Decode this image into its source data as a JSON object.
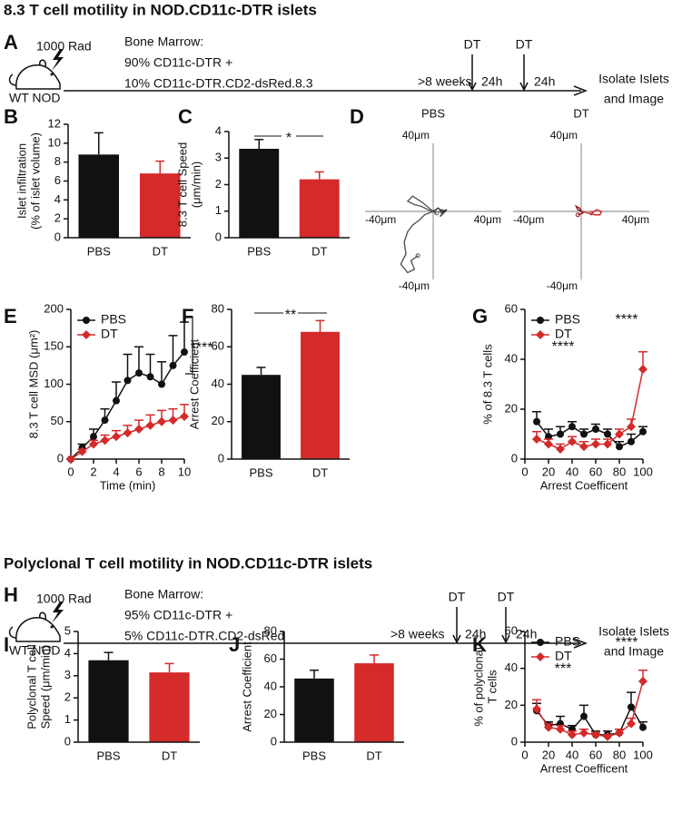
{
  "headings": [
    "8.3 T cell motility in NOD.CD11c-DTR islets",
    "Polyclonal T cell motility in NOD.CD11c-DTR islets"
  ],
  "timelines": [
    {
      "panel": "A",
      "dose": "1000 Rad",
      "mouse": "WT NOD",
      "marrow": [
        "Bone Marrow:",
        "90% CD11c-DTR +",
        "10% CD11c-DTR.CD2-dsRed.8.3"
      ],
      "weeks": ">8 weeks",
      "dt": [
        "DT",
        "DT"
      ],
      "interval": [
        "24h",
        "24h"
      ],
      "end": [
        "Isolate Islets",
        "and Image"
      ]
    },
    {
      "panel": "H",
      "dose": "1000 Rad",
      "mouse": "WT NOD",
      "marrow": [
        "Bone Marrow:",
        "95% CD11c-DTR +",
        "5% CD11c-DTR.CD2-dsRed"
      ],
      "weeks": ">8 weeks",
      "dt": [
        "DT",
        "DT"
      ],
      "interval": [
        "24h",
        "24h"
      ],
      "end": [
        "Isolate Islets",
        "and Image"
      ]
    }
  ],
  "chart_data": [
    {
      "type": "bar",
      "panel": "B",
      "ylabel": [
        "Islet infiltration",
        "(% of islet volume)"
      ],
      "categories": [
        "PBS",
        "DT"
      ],
      "values": [
        8.8,
        6.8
      ],
      "errors": [
        2.3,
        1.3
      ],
      "colors": [
        "#111111",
        "#d42a2a"
      ],
      "ylim": [
        0,
        12
      ],
      "yticks": [
        0,
        2,
        4,
        6,
        8,
        10,
        12
      ],
      "annotations": []
    },
    {
      "type": "bar",
      "panel": "C",
      "ylabel": [
        "8.3 T cell Speed",
        "(μm/min)"
      ],
      "categories": [
        "PBS",
        "DT"
      ],
      "values": [
        3.35,
        2.2
      ],
      "errors": [
        0.35,
        0.28
      ],
      "colors": [
        "#111111",
        "#d42a2a"
      ],
      "ylim": [
        0,
        4
      ],
      "yticks": [
        0,
        1,
        2,
        3,
        4
      ],
      "annotations": [
        {
          "text": "*",
          "color": "#111111"
        }
      ]
    },
    {
      "type": "tracks",
      "panel": "D",
      "xlim": [
        -40,
        40
      ],
      "ylim": [
        -40,
        40
      ],
      "xticks": [
        {
          "value": -40,
          "label": "-40μm"
        },
        {
          "value": 40,
          "label": "40μm"
        }
      ],
      "yticks": [
        {
          "value": -40,
          "label": "-40μm"
        },
        {
          "value": 40,
          "label": "40μm"
        }
      ],
      "plots": [
        {
          "title": "PBS",
          "tracks": [
            {
              "color": "#555555",
              "x": [
                0,
                -5,
                -8,
                -12,
                -15,
                -17,
                -16,
                -19,
                -15,
                -11,
                -13,
                -9
              ],
              "y": [
                0,
                -2,
                -5,
                -8,
                -12,
                -18,
                -25,
                -31,
                -36,
                -34,
                -29,
                -26
              ]
            },
            {
              "color": "#555555",
              "x": [
                0,
                -6,
                -12,
                -15,
                -11,
                -7,
                -3,
                2
              ],
              "y": [
                0,
                5,
                9,
                6,
                4,
                3,
                1,
                -1
              ]
            },
            {
              "color": "#333333",
              "x": [
                0,
                3,
                6,
                4,
                8,
                5
              ],
              "y": [
                0,
                2,
                -1,
                -3,
                1,
                0
              ]
            }
          ]
        },
        {
          "title": "DT",
          "tracks": [
            {
              "color": "#d42a2a",
              "x": [
                0,
                4,
                8,
                11,
                12,
                9,
                6
              ],
              "y": [
                0,
                -1,
                -2,
                -2,
                0,
                1,
                -1
              ]
            },
            {
              "color": "#8b1a1a",
              "x": [
                0,
                -2,
                -3,
                -1,
                1,
                -2
              ],
              "y": [
                0,
                1,
                3,
                2,
                -1,
                -2
              ]
            }
          ]
        }
      ]
    },
    {
      "type": "line",
      "panel": "E",
      "ylabel": [
        "8.3 T cell MSD (μm²)"
      ],
      "xlabel": "Time (min)",
      "x": [
        0,
        1,
        2,
        3,
        4,
        5,
        6,
        7,
        8,
        9,
        10
      ],
      "xlim": [
        0,
        10
      ],
      "xticks": [
        0,
        2,
        4,
        6,
        8,
        10
      ],
      "ylim": [
        0,
        200
      ],
      "yticks": [
        0,
        50,
        100,
        150,
        200
      ],
      "series": [
        {
          "name": "PBS",
          "color": "#111111",
          "marker": "circle",
          "values": [
            0,
            15,
            30,
            52,
            78,
            105,
            115,
            110,
            100,
            125,
            143
          ],
          "errors": [
            0,
            5,
            10,
            15,
            25,
            35,
            35,
            30,
            30,
            40,
            40
          ]
        },
        {
          "name": "DT",
          "color": "#d42a2a",
          "marker": "diamond",
          "values": [
            0,
            10,
            20,
            25,
            30,
            35,
            40,
            45,
            50,
            52,
            57
          ],
          "errors": [
            0,
            3,
            5,
            7,
            8,
            10,
            12,
            14,
            15,
            15,
            16
          ]
        }
      ],
      "annotations": [
        {
          "text": "****",
          "color": "#111111"
        }
      ]
    },
    {
      "type": "bar",
      "panel": "F",
      "ylabel": [
        "Arrest Coefficient"
      ],
      "categories": [
        "PBS",
        "DT"
      ],
      "values": [
        45,
        68
      ],
      "errors": [
        4,
        6
      ],
      "colors": [
        "#111111",
        "#d42a2a"
      ],
      "ylim": [
        0,
        80
      ],
      "yticks": [
        0,
        20,
        40,
        60,
        80
      ],
      "annotations": [
        {
          "text": "**",
          "color": "#111111"
        }
      ]
    },
    {
      "type": "line",
      "panel": "G",
      "ylabel": [
        "% of 8.3 T cells"
      ],
      "xlabel": "Arrest Coefficent",
      "x": [
        10,
        20,
        30,
        40,
        50,
        60,
        70,
        80,
        90,
        100
      ],
      "xlim": [
        0,
        100
      ],
      "xticks": [
        0,
        20,
        40,
        60,
        80,
        100
      ],
      "ylim": [
        0,
        60
      ],
      "yticks": [
        0,
        20,
        40,
        60
      ],
      "series": [
        {
          "name": "PBS",
          "color": "#111111",
          "marker": "circle",
          "values": [
            15,
            9,
            10,
            13,
            10,
            12,
            10,
            5,
            7,
            11
          ],
          "errors": [
            4,
            3,
            3,
            2,
            2,
            2,
            2,
            2,
            3,
            2
          ]
        },
        {
          "name": "DT",
          "color": "#d42a2a",
          "marker": "diamond",
          "values": [
            8,
            6,
            4,
            7,
            5,
            6,
            6,
            10,
            13,
            36
          ],
          "errors": [
            3,
            2,
            2,
            2,
            2,
            2,
            2,
            2,
            3,
            7
          ]
        }
      ],
      "annotations": [
        {
          "text": "****",
          "color": "#d42a2a"
        },
        {
          "text": "****",
          "color": "#111111"
        }
      ]
    },
    {
      "type": "bar",
      "panel": "I",
      "ylabel": [
        "Polyclonal T cell",
        "Speed (μm/min)"
      ],
      "categories": [
        "PBS",
        "DT"
      ],
      "values": [
        3.7,
        3.15
      ],
      "errors": [
        0.35,
        0.4
      ],
      "colors": [
        "#111111",
        "#d42a2a"
      ],
      "ylim": [
        0,
        5
      ],
      "yticks": [
        0,
        1,
        2,
        3,
        4,
        5
      ],
      "annotations": []
    },
    {
      "type": "bar",
      "panel": "J",
      "ylabel": [
        "Arrest Coefficient"
      ],
      "categories": [
        "PBS",
        "DT"
      ],
      "values": [
        46,
        57
      ],
      "errors": [
        6,
        6
      ],
      "colors": [
        "#111111",
        "#d42a2a"
      ],
      "ylim": [
        0,
        80
      ],
      "yticks": [
        0,
        20,
        40,
        60,
        80
      ],
      "annotations": []
    },
    {
      "type": "line",
      "panel": "K",
      "ylabel": [
        "% of polyclonal",
        "T cells"
      ],
      "xlabel": "Arrest Coefficent",
      "x": [
        10,
        20,
        30,
        40,
        50,
        60,
        70,
        80,
        90,
        100
      ],
      "xlim": [
        0,
        100
      ],
      "xticks": [
        0,
        20,
        40,
        60,
        80,
        100
      ],
      "ylim": [
        0,
        60
      ],
      "yticks": [
        0,
        20,
        40,
        60
      ],
      "series": [
        {
          "name": "PBS",
          "color": "#111111",
          "marker": "circle",
          "values": [
            17,
            9,
            10,
            7,
            14,
            4,
            4,
            5,
            19,
            8
          ],
          "errors": [
            4,
            2,
            4,
            2,
            6,
            2,
            2,
            2,
            8,
            3
          ]
        },
        {
          "name": "DT",
          "color": "#d42a2a",
          "marker": "diamond",
          "values": [
            18,
            8,
            7,
            4,
            5,
            4,
            3,
            5,
            10,
            33
          ],
          "errors": [
            5,
            2,
            2,
            2,
            2,
            1,
            1,
            2,
            3,
            6
          ]
        }
      ],
      "annotations": [
        {
          "text": "***",
          "color": "#d42a2a"
        },
        {
          "text": "****",
          "color": "#111111"
        }
      ]
    }
  ]
}
